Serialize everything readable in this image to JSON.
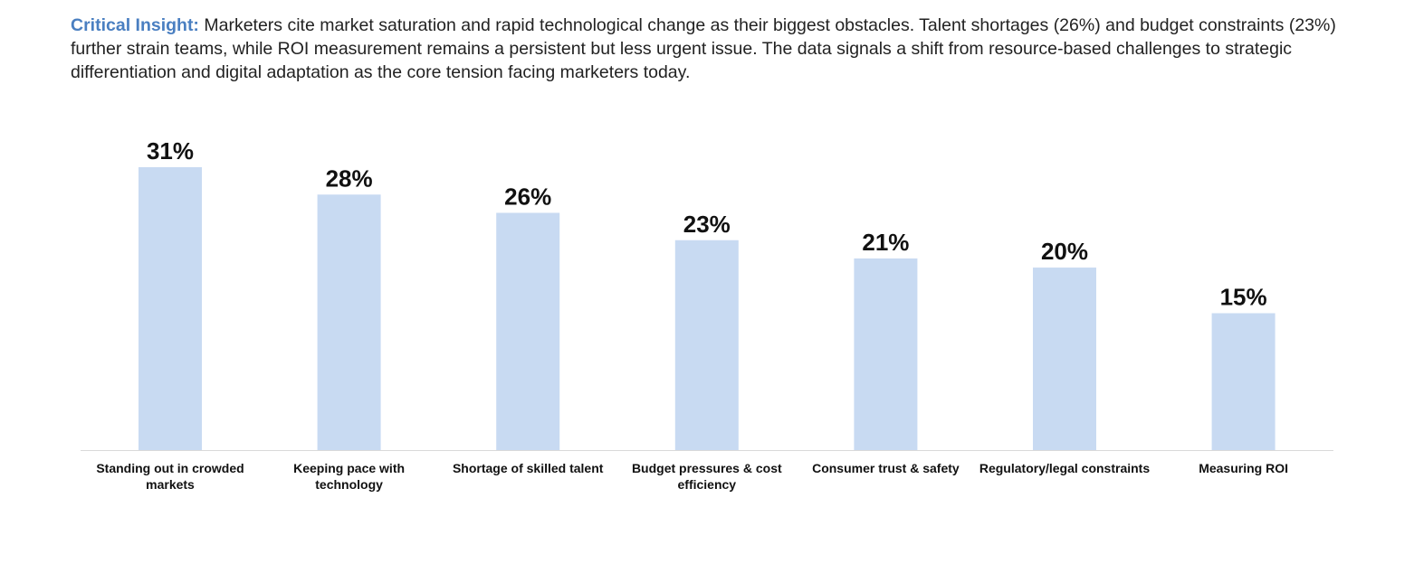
{
  "insight": {
    "lead": "Critical Insight:",
    "text": "Marketers cite market saturation and rapid technological change as their biggest obstacles. Talent shortages (26%) and budget constraints (23%) further strain teams, while ROI measurement remains a persistent but less urgent issue. The data signals a shift from resource-based challenges to strategic differentiation and digital adaptation as the core tension facing marketers today."
  },
  "colors": {
    "accent": "#4a7fc1",
    "bar": "#c8daf2",
    "text": "#111111"
  },
  "chart_data": {
    "type": "bar",
    "categories": [
      [
        "Standing out in crowded",
        "markets"
      ],
      [
        "Keeping pace with",
        "technology"
      ],
      [
        "Shortage of skilled talent"
      ],
      [
        "Budget pressures & cost",
        "efficiency"
      ],
      [
        "Consumer trust & safety"
      ],
      [
        "Regulatory/legal constraints"
      ],
      [
        "Measuring ROI"
      ]
    ],
    "values": [
      31,
      28,
      26,
      23,
      21,
      20,
      15
    ],
    "value_labels": [
      "31%",
      "28%",
      "26%",
      "23%",
      "21%",
      "20%",
      "15%"
    ],
    "title": "",
    "xlabel": "",
    "ylabel": "",
    "ylim": [
      0,
      31
    ],
    "grid": false,
    "legend": "none"
  }
}
